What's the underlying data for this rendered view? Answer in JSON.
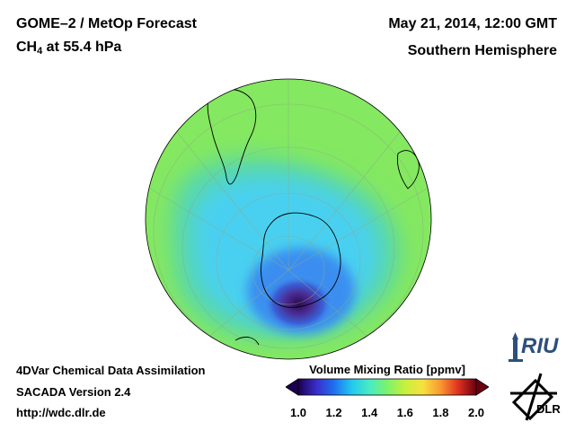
{
  "header": {
    "title": "GOME–2 / MetOp Forecast",
    "species_prefix": "CH",
    "species_sub": "4",
    "species_suffix": " at 55.4 hPa",
    "datetime": "May 21, 2014, 12:00 GMT",
    "region": "Southern Hemisphere"
  },
  "footer": {
    "method": "4DVar Chemical Data Assimilation",
    "version": "SACADA Version 2.4",
    "url": "http://wdc.dlr.de"
  },
  "colorbar": {
    "label": "Volume Mixing Ratio [ppmv]",
    "min": 1.0,
    "max": 2.0,
    "ticks": [
      "1.0",
      "1.2",
      "1.4",
      "1.6",
      "1.8",
      "2.0"
    ],
    "colors": [
      "#1a0050",
      "#3a2cc8",
      "#1f6ff0",
      "#22c8f0",
      "#48ecc4",
      "#7cf26c",
      "#c8f03c",
      "#f8e040",
      "#f89830",
      "#e03020",
      "#6a0010"
    ]
  },
  "logos": {
    "riu": "RIU",
    "dlr": "DLR"
  },
  "map": {
    "projection": "orthographic-south-polar",
    "background_color": "#7ce868",
    "low_region_color": "#4fe0e8",
    "minimum_color": "#2a0a50"
  }
}
